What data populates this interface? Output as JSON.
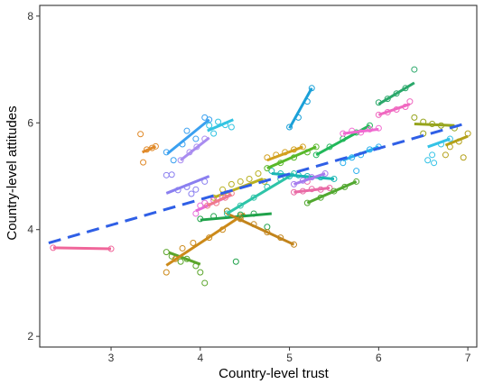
{
  "chart_data": {
    "type": "scatter",
    "title": "",
    "xlabel": "Country-level trust",
    "ylabel": "Country-level attitudes",
    "xlim": [
      2.2,
      7.1
    ],
    "ylim": [
      1.8,
      8.2
    ],
    "x_ticks": [
      3,
      4,
      5,
      6,
      7
    ],
    "y_ticks": [
      2,
      4,
      6,
      8
    ],
    "grid": false,
    "legend": "none",
    "overall_trend": {
      "x": [
        2.3,
        7.0
      ],
      "y": [
        3.75,
        6.0
      ],
      "color": "#2f5fe6",
      "style": "dashed"
    },
    "groups": [
      {
        "color": "#f0669a",
        "line_x": [
          2.35,
          3.0
        ],
        "line_y": [
          3.66,
          3.64
        ],
        "points": [
          [
            2.35,
            3.66
          ],
          [
            3.0,
            3.64
          ]
        ]
      },
      {
        "color": "#e08a2a",
        "line_x": [
          3.35,
          3.5
        ],
        "line_y": [
          5.45,
          5.56
        ],
        "points": [
          [
            3.33,
            5.79
          ],
          [
            3.36,
            5.26
          ],
          [
            3.4,
            5.5
          ],
          [
            3.46,
            5.53
          ],
          [
            3.5,
            5.56
          ]
        ]
      },
      {
        "color": "#3aa0f0",
        "line_x": [
          3.63,
          4.1
        ],
        "line_y": [
          5.42,
          6.06
        ],
        "points": [
          [
            3.62,
            5.45
          ],
          [
            3.7,
            5.3
          ],
          [
            3.8,
            5.6
          ],
          [
            3.95,
            5.7
          ],
          [
            4.05,
            6.1
          ],
          [
            4.1,
            6.06
          ],
          [
            3.85,
            5.85
          ]
        ]
      },
      {
        "color": "#33c4e2",
        "line_x": [
          4.08,
          4.37
        ],
        "line_y": [
          5.85,
          6.06
        ],
        "points": [
          [
            4.1,
            5.95
          ],
          [
            4.2,
            6.02
          ],
          [
            4.28,
            5.96
          ],
          [
            4.35,
            5.92
          ],
          [
            4.15,
            5.8
          ]
        ]
      },
      {
        "color": "#a98cf0",
        "line_x": [
          3.78,
          4.1
        ],
        "line_y": [
          5.3,
          5.72
        ],
        "points": [
          [
            3.78,
            5.3
          ],
          [
            3.88,
            5.45
          ],
          [
            3.96,
            5.55
          ],
          [
            4.05,
            5.7
          ]
        ]
      },
      {
        "color": "#8a7ff0",
        "line_x": [
          3.62,
          4.1
        ],
        "line_y": [
          4.68,
          5.0
        ],
        "points": [
          [
            3.62,
            5.02
          ],
          [
            3.68,
            5.03
          ],
          [
            3.75,
            4.74
          ],
          [
            3.85,
            4.8
          ],
          [
            3.95,
            4.75
          ],
          [
            4.05,
            4.9
          ],
          [
            3.9,
            4.67
          ]
        ]
      },
      {
        "color": "#5aa52a",
        "line_x": [
          3.65,
          4.0
        ],
        "line_y": [
          3.57,
          3.35
        ],
        "points": [
          [
            3.62,
            3.58
          ],
          [
            3.68,
            3.5
          ],
          [
            3.78,
            3.4
          ],
          [
            3.85,
            3.45
          ],
          [
            3.95,
            3.32
          ],
          [
            4.0,
            3.2
          ],
          [
            4.05,
            3.0
          ]
        ]
      },
      {
        "color": "#cc8a1a",
        "line_x": [
          3.62,
          4.5
        ],
        "line_y": [
          3.33,
          4.3
        ],
        "points": [
          [
            3.62,
            3.2
          ],
          [
            3.72,
            3.45
          ],
          [
            3.8,
            3.65
          ],
          [
            3.92,
            3.75
          ],
          [
            4.1,
            3.85
          ],
          [
            4.25,
            4.0
          ],
          [
            4.45,
            4.25
          ]
        ]
      },
      {
        "color": "#b8b020",
        "line_x": [
          4.15,
          4.7
        ],
        "line_y": [
          4.6,
          4.95
        ],
        "points": [
          [
            4.15,
            4.6
          ],
          [
            4.25,
            4.75
          ],
          [
            4.35,
            4.85
          ],
          [
            4.45,
            4.9
          ],
          [
            4.55,
            4.95
          ],
          [
            4.65,
            5.05
          ],
          [
            4.72,
            4.9
          ]
        ]
      },
      {
        "color": "#e66ad8",
        "line_x": [
          3.95,
          4.35
        ],
        "line_y": [
          4.35,
          4.65
        ],
        "points": [
          [
            3.95,
            4.3
          ],
          [
            4.0,
            4.45
          ],
          [
            4.05,
            4.5
          ],
          [
            4.15,
            4.55
          ],
          [
            4.25,
            4.62
          ],
          [
            4.3,
            4.68
          ]
        ]
      },
      {
        "color": "#1fa24a",
        "line_x": [
          4.0,
          4.8
        ],
        "line_y": [
          4.18,
          4.3
        ],
        "points": [
          [
            4.0,
            4.2
          ],
          [
            4.15,
            4.25
          ],
          [
            4.3,
            4.35
          ],
          [
            4.45,
            4.28
          ],
          [
            4.6,
            4.3
          ],
          [
            4.75,
            4.05
          ],
          [
            4.4,
            3.4
          ]
        ]
      },
      {
        "color": "#f07a8a",
        "line_x": [
          4.08,
          4.35
        ],
        "line_y": [
          4.45,
          4.66
        ],
        "points": [
          [
            4.08,
            4.45
          ],
          [
            4.18,
            4.5
          ],
          [
            4.28,
            4.6
          ],
          [
            4.35,
            4.68
          ]
        ]
      },
      {
        "color": "#c2841c",
        "line_x": [
          4.3,
          5.05
        ],
        "line_y": [
          4.3,
          3.72
        ],
        "points": [
          [
            4.3,
            4.35
          ],
          [
            4.45,
            4.2
          ],
          [
            4.6,
            4.1
          ],
          [
            4.75,
            3.95
          ],
          [
            4.9,
            3.85
          ],
          [
            5.05,
            3.72
          ]
        ]
      },
      {
        "color": "#2ec4a8",
        "line_x": [
          4.3,
          5.05
        ],
        "line_y": [
          4.3,
          5.05
        ],
        "points": [
          [
            4.3,
            4.3
          ],
          [
            4.45,
            4.45
          ],
          [
            4.6,
            4.6
          ],
          [
            4.75,
            4.8
          ],
          [
            4.9,
            4.95
          ],
          [
            5.05,
            5.05
          ]
        ]
      },
      {
        "color": "#1ab6b4",
        "line_x": [
          4.8,
          5.5
        ],
        "line_y": [
          5.05,
          4.95
        ],
        "points": [
          [
            4.8,
            5.1
          ],
          [
            4.9,
            5.05
          ],
          [
            5.0,
            5.0
          ],
          [
            5.1,
            5.02
          ],
          [
            5.2,
            5.0
          ],
          [
            5.35,
            4.98
          ],
          [
            5.5,
            4.95
          ]
        ]
      },
      {
        "color": "#1aa0d8",
        "line_x": [
          5.0,
          5.25
        ],
        "line_y": [
          5.9,
          6.65
        ],
        "points": [
          [
            5.0,
            5.92
          ],
          [
            5.1,
            6.1
          ],
          [
            5.2,
            6.4
          ],
          [
            5.25,
            6.65
          ]
        ]
      },
      {
        "color": "#d2a01e",
        "line_x": [
          4.75,
          5.15
        ],
        "line_y": [
          5.3,
          5.55
        ],
        "points": [
          [
            4.75,
            5.35
          ],
          [
            4.85,
            5.4
          ],
          [
            4.95,
            5.45
          ],
          [
            5.05,
            5.5
          ],
          [
            5.15,
            5.55
          ]
        ]
      },
      {
        "color": "#58b82a",
        "line_x": [
          4.75,
          5.3
        ],
        "line_y": [
          5.15,
          5.55
        ],
        "points": [
          [
            4.75,
            5.15
          ],
          [
            4.9,
            5.25
          ],
          [
            5.05,
            5.35
          ],
          [
            5.2,
            5.45
          ],
          [
            5.3,
            5.55
          ]
        ]
      },
      {
        "color": "#e96aa5",
        "line_x": [
          5.05,
          5.45
        ],
        "line_y": [
          4.7,
          4.78
        ],
        "points": [
          [
            5.05,
            4.7
          ],
          [
            5.15,
            4.72
          ],
          [
            5.25,
            4.76
          ],
          [
            5.35,
            4.75
          ],
          [
            5.45,
            4.78
          ],
          [
            5.2,
            4.9
          ]
        ]
      },
      {
        "color": "#a67bee",
        "line_x": [
          5.05,
          5.4
        ],
        "line_y": [
          4.85,
          5.05
        ],
        "points": [
          [
            5.05,
            4.85
          ],
          [
            5.15,
            4.92
          ],
          [
            5.25,
            4.98
          ],
          [
            5.4,
            5.05
          ]
        ]
      },
      {
        "color": "#52a830",
        "line_x": [
          5.2,
          5.75
        ],
        "line_y": [
          4.5,
          4.9
        ],
        "points": [
          [
            5.2,
            4.5
          ],
          [
            5.35,
            4.6
          ],
          [
            5.5,
            4.72
          ],
          [
            5.62,
            4.8
          ],
          [
            5.75,
            4.9
          ]
        ]
      },
      {
        "color": "#22b85a",
        "line_x": [
          5.3,
          5.9
        ],
        "line_y": [
          5.4,
          5.95
        ],
        "points": [
          [
            5.3,
            5.4
          ],
          [
            5.45,
            5.55
          ],
          [
            5.6,
            5.7
          ],
          [
            5.75,
            5.82
          ],
          [
            5.9,
            5.95
          ]
        ]
      },
      {
        "color": "#f06ad0",
        "line_x": [
          5.6,
          6.0
        ],
        "line_y": [
          5.8,
          5.88
        ],
        "points": [
          [
            5.6,
            5.8
          ],
          [
            5.7,
            5.85
          ],
          [
            5.8,
            5.82
          ],
          [
            5.9,
            5.88
          ],
          [
            6.0,
            5.9
          ]
        ]
      },
      {
        "color": "#2ab0ee",
        "line_x": [
          5.6,
          6.0
        ],
        "line_y": [
          5.3,
          5.55
        ],
        "points": [
          [
            5.6,
            5.25
          ],
          [
            5.7,
            5.35
          ],
          [
            5.8,
            5.4
          ],
          [
            5.9,
            5.5
          ],
          [
            6.0,
            5.55
          ],
          [
            5.75,
            5.1
          ]
        ]
      },
      {
        "color": "#2aa86a",
        "line_x": [
          6.0,
          6.4
        ],
        "line_y": [
          6.35,
          6.75
        ],
        "points": [
          [
            6.0,
            6.38
          ],
          [
            6.1,
            6.45
          ],
          [
            6.2,
            6.55
          ],
          [
            6.3,
            6.65
          ],
          [
            6.4,
            7.0
          ]
        ]
      },
      {
        "color": "#f068c0",
        "line_x": [
          6.0,
          6.35
        ],
        "line_y": [
          6.15,
          6.35
        ],
        "points": [
          [
            6.0,
            6.15
          ],
          [
            6.1,
            6.2
          ],
          [
            6.2,
            6.25
          ],
          [
            6.3,
            6.3
          ],
          [
            6.35,
            6.4
          ]
        ]
      },
      {
        "color": "#96a41c",
        "line_x": [
          6.4,
          6.85
        ],
        "line_y": [
          5.98,
          5.95
        ],
        "points": [
          [
            6.4,
            6.1
          ],
          [
            6.5,
            6.02
          ],
          [
            6.6,
            5.98
          ],
          [
            6.7,
            5.95
          ],
          [
            6.85,
            5.9
          ],
          [
            6.5,
            5.8
          ]
        ]
      },
      {
        "color": "#b4a018",
        "line_x": [
          6.75,
          7.0
        ],
        "line_y": [
          5.58,
          5.75
        ],
        "points": [
          [
            6.75,
            5.4
          ],
          [
            6.8,
            5.55
          ],
          [
            6.9,
            5.65
          ],
          [
            7.0,
            5.8
          ],
          [
            6.95,
            5.35
          ]
        ]
      },
      {
        "color": "#33c2e6",
        "line_x": [
          6.55,
          6.8
        ],
        "line_y": [
          5.55,
          5.7
        ],
        "points": [
          [
            6.55,
            5.3
          ],
          [
            6.6,
            5.4
          ],
          [
            6.7,
            5.6
          ],
          [
            6.8,
            5.7
          ],
          [
            6.62,
            5.25
          ]
        ]
      }
    ]
  }
}
